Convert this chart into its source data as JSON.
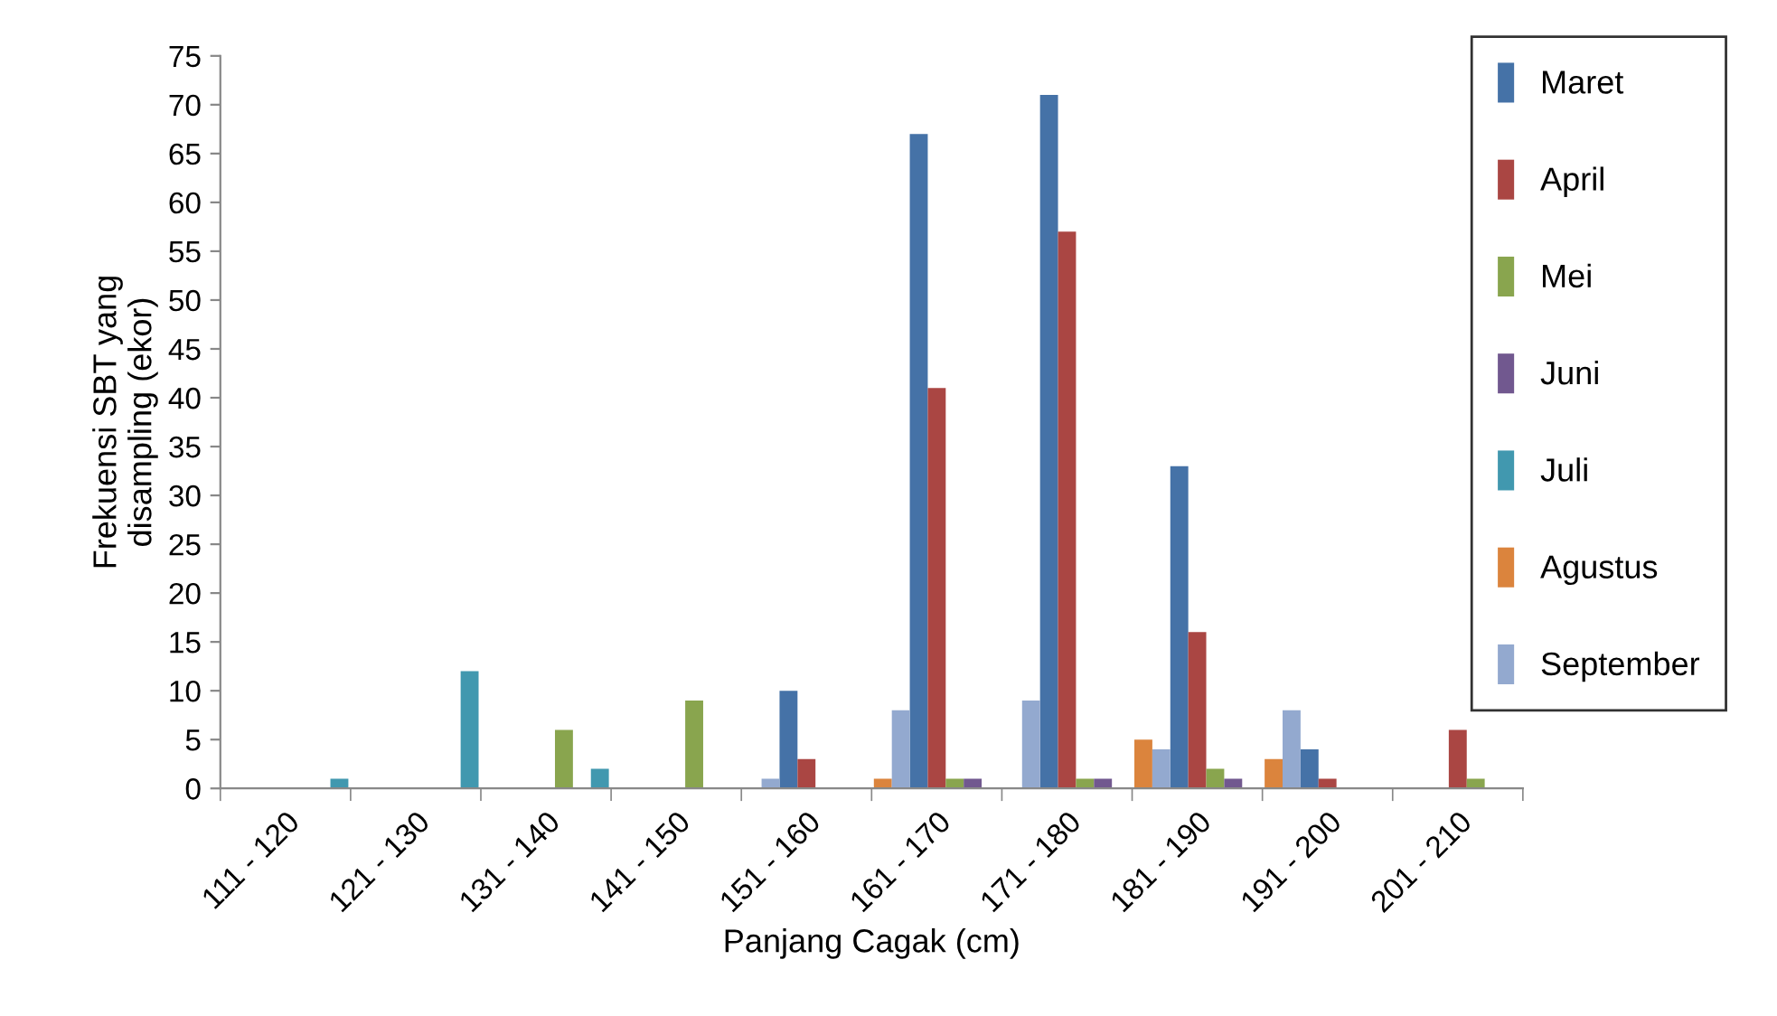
{
  "chart_data": {
    "type": "bar",
    "xlabel": "Panjang Cagak (cm)",
    "ylabel": "Frekuensi SBT yang\ndisampling (ekor)",
    "categories": [
      "111 - 120",
      "121 - 130",
      "131 - 140",
      "141 - 150",
      "151 - 160",
      "161 - 170",
      "171 - 180",
      "181 - 190",
      "191 - 200",
      "201 - 210"
    ],
    "series": [
      {
        "name": "Maret",
        "color": "#4572a7",
        "values": [
          null,
          null,
          null,
          null,
          10,
          67,
          71,
          33,
          4,
          null
        ]
      },
      {
        "name": "April",
        "color": "#aa4643",
        "values": [
          null,
          null,
          null,
          null,
          3,
          41,
          57,
          16,
          1,
          6
        ]
      },
      {
        "name": "Mei",
        "color": "#89a54e",
        "values": [
          null,
          null,
          6,
          9,
          null,
          1,
          1,
          2,
          null,
          1
        ]
      },
      {
        "name": "Juni",
        "color": "#71588f",
        "values": [
          null,
          null,
          null,
          null,
          null,
          1,
          1,
          1,
          null,
          null
        ]
      },
      {
        "name": "Juli",
        "color": "#4198af",
        "values": [
          1,
          12,
          2,
          null,
          null,
          null,
          null,
          null,
          null,
          null
        ]
      },
      {
        "name": "Agustus",
        "color": "#db843d",
        "values": [
          null,
          null,
          null,
          null,
          null,
          1,
          null,
          5,
          3,
          null
        ]
      },
      {
        "name": "September",
        "color": "#93a9cf",
        "values": [
          null,
          null,
          null,
          null,
          1,
          8,
          9,
          4,
          8,
          null
        ]
      }
    ],
    "ylim": [
      0,
      75
    ],
    "yticks": [
      0,
      5,
      10,
      15,
      20,
      25,
      30,
      35,
      40,
      45,
      50,
      55,
      60,
      65,
      70,
      75
    ],
    "grid": false,
    "legend": "right"
  }
}
